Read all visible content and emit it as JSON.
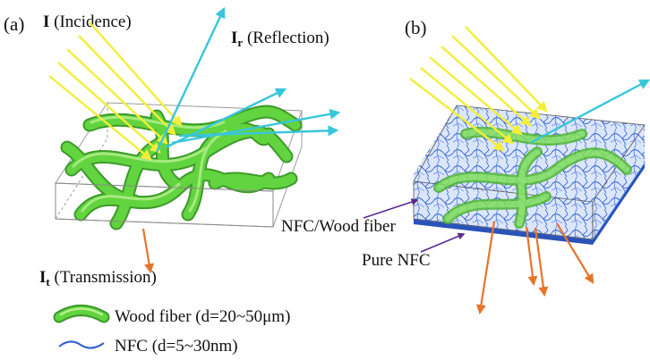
{
  "panel_a": {
    "label": "(a)",
    "incidence": {
      "symbol": "I",
      "text": " (Incidence)"
    },
    "reflection": {
      "symbol": "I",
      "subscript": "r",
      "text": " (Reflection)"
    },
    "transmission": {
      "symbol": "I",
      "subscript": "t",
      "text": " (Transmission)"
    }
  },
  "panel_b": {
    "label": "(b)",
    "nfc_wood_label": "NFC/Wood fiber",
    "pure_nfc_label": "Pure NFC"
  },
  "legend": {
    "wood_fiber": "Wood fiber (d=20~50μm)",
    "nfc": "NFC (d=5~30nm)"
  },
  "colors": {
    "incident_ray": "#f2ee3a",
    "reflected_ray": "#38c6dc",
    "transmitted_ray": "#e8742a",
    "wood_fiber": "#5fcf3e",
    "nfc_fiber": "#2f5fd0",
    "pure_nfc_layer": "#2a52b8",
    "pointer": "#5b2a8c"
  }
}
